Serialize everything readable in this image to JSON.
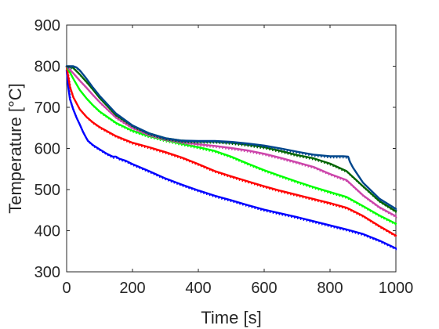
{
  "chart_data": {
    "type": "line",
    "title": "",
    "xlabel": "Time [s]",
    "ylabel": "Temperature [°C]",
    "xlim": [
      0,
      1000
    ],
    "ylim": [
      300,
      900
    ],
    "xticks": [
      0,
      200,
      400,
      600,
      800,
      1000
    ],
    "yticks": [
      300,
      400,
      500,
      600,
      700,
      800,
      900
    ],
    "grid": false,
    "legend": "none",
    "series": [
      {
        "color": "#0000ff",
        "style": "solid with dotted overlay",
        "x": [
          0,
          5,
          10,
          20,
          30,
          40,
          50,
          60,
          65,
          70,
          80,
          100,
          120,
          140,
          150,
          160,
          180,
          200,
          250,
          300,
          350,
          400,
          450,
          500,
          550,
          600,
          650,
          700,
          750,
          800,
          850,
          900,
          950,
          1000
        ],
        "y": [
          790,
          750,
          720,
          695,
          675,
          658,
          640,
          625,
          618,
          615,
          608,
          598,
          588,
          580,
          580,
          575,
          570,
          562,
          545,
          527,
          512,
          498,
          485,
          474,
          462,
          451,
          442,
          433,
          423,
          413,
          403,
          392,
          376,
          357
        ]
      },
      {
        "color": "#ff0000",
        "style": "solid with dotted overlay",
        "x": [
          0,
          10,
          20,
          40,
          60,
          80,
          100,
          150,
          200,
          250,
          300,
          350,
          400,
          450,
          500,
          550,
          600,
          650,
          700,
          750,
          800,
          850,
          900,
          950,
          1000
        ],
        "y": [
          798,
          750,
          725,
          695,
          677,
          663,
          652,
          630,
          614,
          603,
          591,
          578,
          562,
          545,
          532,
          520,
          508,
          497,
          487,
          477,
          467,
          456,
          436,
          411,
          388
        ]
      },
      {
        "color": "#00ff00",
        "style": "solid with dotted overlay",
        "x": [
          0,
          20,
          40,
          60,
          80,
          100,
          150,
          200,
          250,
          300,
          350,
          400,
          450,
          500,
          550,
          600,
          650,
          700,
          750,
          800,
          850,
          900,
          950,
          1000
        ],
        "y": [
          800,
          770,
          742,
          722,
          705,
          690,
          662,
          643,
          630,
          620,
          611,
          603,
          594,
          580,
          563,
          547,
          533,
          519,
          506,
          494,
          482,
          460,
          437,
          417
        ]
      },
      {
        "color": "#cc44aa",
        "style": "solid with dotted overlay",
        "x": [
          0,
          20,
          40,
          60,
          80,
          100,
          150,
          200,
          250,
          300,
          350,
          400,
          450,
          500,
          550,
          600,
          650,
          700,
          750,
          800,
          850,
          900,
          950,
          1000
        ],
        "y": [
          800,
          783,
          765,
          748,
          730,
          713,
          675,
          650,
          633,
          622,
          615,
          610,
          606,
          601,
          595,
          587,
          577,
          566,
          555,
          538,
          523,
          486,
          457,
          435
        ]
      },
      {
        "color": "#006400",
        "style": "solid with dotted overlay",
        "x": [
          0,
          20,
          40,
          60,
          80,
          100,
          150,
          200,
          250,
          300,
          350,
          400,
          450,
          500,
          550,
          600,
          650,
          700,
          750,
          800,
          850,
          900,
          950,
          1000
        ],
        "y": [
          800,
          796,
          780,
          762,
          743,
          723,
          681,
          655,
          637,
          625,
          619,
          617,
          617,
          614,
          609,
          603,
          594,
          584,
          576,
          563,
          545,
          508,
          472,
          447
        ]
      },
      {
        "color": "#00468c",
        "style": "solid with dotted overlay",
        "x": [
          0,
          10,
          20,
          30,
          40,
          60,
          80,
          100,
          150,
          200,
          250,
          300,
          350,
          400,
          450,
          500,
          550,
          600,
          650,
          700,
          750,
          800,
          840,
          855,
          860,
          870,
          900,
          950,
          1000
        ],
        "y": [
          800,
          800,
          800,
          797,
          790,
          770,
          748,
          728,
          685,
          656,
          637,
          625,
          619,
          618,
          618,
          616,
          612,
          607,
          600,
          592,
          585,
          581,
          581,
          580,
          568,
          553,
          517,
          478,
          453
        ]
      }
    ]
  }
}
